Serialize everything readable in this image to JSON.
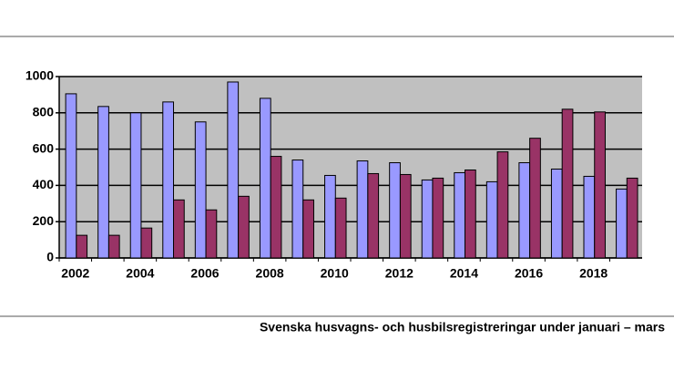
{
  "chart_data": {
    "type": "bar",
    "title": "Svenska husvagns- och husbilsregistreringar under januari – mars",
    "categories": [
      "2002",
      null,
      "2004",
      null,
      "2006",
      null,
      "2008",
      null,
      "2010",
      null,
      "2012",
      null,
      "2014",
      null,
      "2016",
      null,
      "2018",
      null
    ],
    "series": [
      {
        "color": "#9999ff",
        "values": [
          905,
          835,
          800,
          860,
          750,
          970,
          880,
          540,
          455,
          535,
          525,
          430,
          470,
          420,
          525,
          490,
          450,
          380
        ]
      },
      {
        "color": "#993366",
        "values": [
          125,
          125,
          165,
          320,
          265,
          340,
          560,
          320,
          330,
          465,
          460,
          440,
          485,
          585,
          660,
          820,
          805,
          440
        ]
      }
    ],
    "ylim": [
      0,
      1000
    ],
    "yticks": [
      0,
      200,
      400,
      600,
      800,
      1000
    ],
    "grid": true,
    "background": "#c0c0c0"
  }
}
